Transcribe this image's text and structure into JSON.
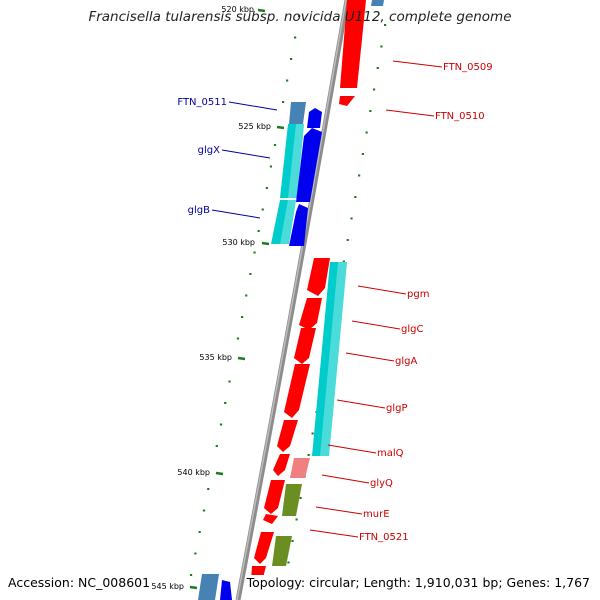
{
  "title": "Francisella tularensis subsp. novicida U112, complete genome",
  "accession": "Accession: NC_008601",
  "topology": "Topology: circular; Length: 1,910,031 bp; Genes: 1,767",
  "colors": {
    "backbone": "#8c8c8c",
    "forward_label": "#cc0000",
    "reverse_label": "#000099",
    "kbp_tick": "#1f7a1f",
    "gene_red": "#ff0000",
    "gene_blue": "#0000ee",
    "gene_cyan": "#00cccc",
    "gene_steel": "#4682b4",
    "gene_pink": "#f08080",
    "gene_olive": "#6b8e23"
  },
  "ruler": [
    {
      "label": "520 kbp"
    },
    {
      "label": "525 kbp"
    },
    {
      "label": "530 kbp"
    },
    {
      "label": "535 kbp"
    },
    {
      "label": "540 kbp"
    },
    {
      "label": "545 kbp"
    }
  ],
  "forward_labels": [
    {
      "name": "FTN_0509"
    },
    {
      "name": "FTN_0510"
    },
    {
      "name": "pgm"
    },
    {
      "name": "glgC"
    },
    {
      "name": "glgA"
    },
    {
      "name": "glgP"
    },
    {
      "name": "malQ"
    },
    {
      "name": "glyQ"
    },
    {
      "name": "murE"
    },
    {
      "name": "FTN_0521"
    }
  ],
  "reverse_labels": [
    {
      "name": "FTN_0511"
    },
    {
      "name": "glgX"
    },
    {
      "name": "glgB"
    }
  ]
}
